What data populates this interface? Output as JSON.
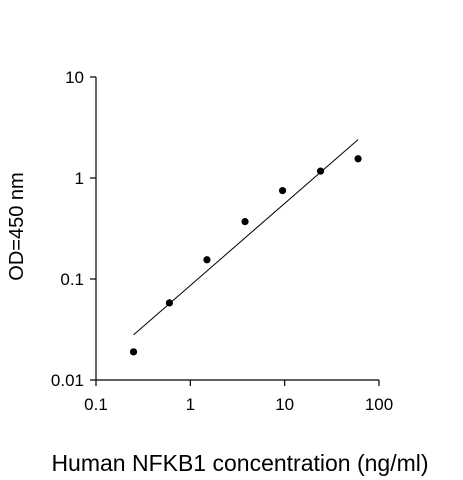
{
  "chart_data": {
    "type": "scatter",
    "title": "",
    "xlabel": "Human NFKB1 concentration (ng/ml)",
    "ylabel": "OD=450 nm",
    "xscale": "log",
    "yscale": "log",
    "xlim": [
      0.1,
      100
    ],
    "ylim": [
      0.01,
      10
    ],
    "xticks": [
      "0.1",
      "1",
      "10",
      "100"
    ],
    "yticks": [
      "0.01",
      "0.1",
      "1",
      "10"
    ],
    "grid": false,
    "legend": "none",
    "series": [
      {
        "x": [
          0.25,
          0.6,
          1.5,
          3.8,
          9.5,
          24,
          60
        ],
        "y": [
          0.019,
          0.058,
          0.155,
          0.37,
          0.75,
          1.17,
          1.55
        ]
      }
    ],
    "fit_line": {
      "x": [
        0.25,
        60
      ],
      "y": [
        0.028,
        2.4
      ]
    },
    "colors": {
      "points": "#000000",
      "line": "#000000",
      "axes": "#000000"
    }
  }
}
